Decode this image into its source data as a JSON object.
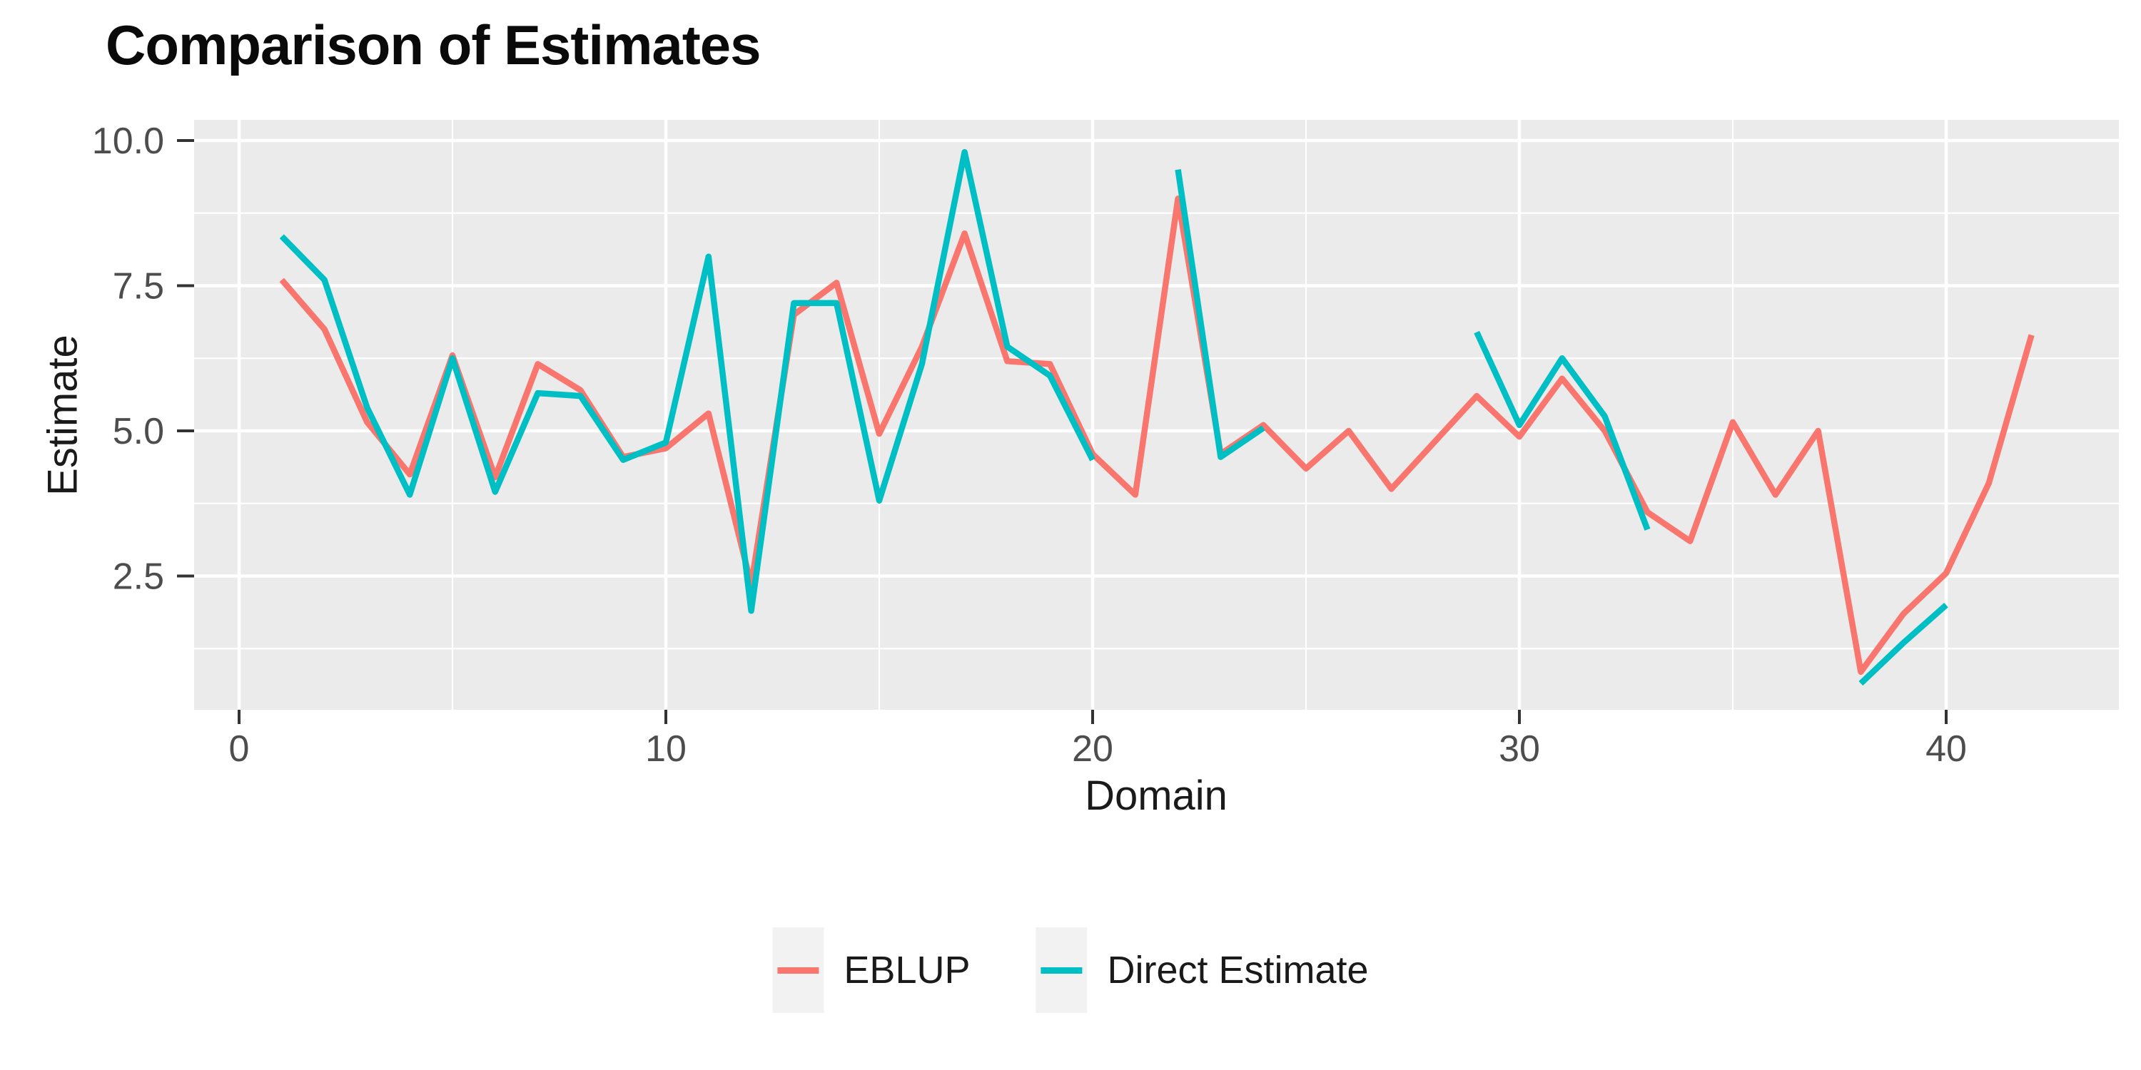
{
  "page": {
    "background": "#FFFFFF"
  },
  "chart_data": {
    "type": "line",
    "title": "Comparison of Estimates",
    "xlabel": "Domain",
    "ylabel": "Estimate",
    "grid": "on",
    "legend_position": "bottom-center",
    "panel_background": "#EBEBEB",
    "grid_color": "#FFFFFF",
    "tick_label_color": "#4D4D4D",
    "tick_mark_color": "#333333",
    "x_start": 1,
    "xlim": [
      -1.05,
      44.05
    ],
    "ylim": [
      0.2,
      10.36
    ],
    "x_ticks": [
      0,
      10,
      20,
      30,
      40
    ],
    "x_tick_labels": [
      "0",
      "10",
      "20",
      "30",
      "40"
    ],
    "x_minor_ticks": [
      5,
      15,
      25,
      35
    ],
    "y_ticks": [
      2.5,
      5.0,
      7.5,
      10.0
    ],
    "y_tick_labels": [
      "2.5",
      "5.0",
      "7.5",
      "10.0"
    ],
    "y_minor_ticks": [
      1.25,
      3.75,
      6.25,
      8.75
    ],
    "series": [
      {
        "name": "EBLUP",
        "color": "#F8766D",
        "values": [
          7.6,
          6.75,
          5.15,
          4.25,
          6.3,
          4.2,
          6.15,
          5.7,
          4.55,
          4.7,
          5.3,
          2.35,
          7.0,
          7.55,
          4.95,
          6.45,
          8.4,
          6.2,
          6.15,
          4.6,
          3.9,
          9.0,
          4.6,
          5.1,
          4.35,
          5.0,
          4.0,
          4.8,
          5.6,
          4.9,
          5.9,
          5.0,
          3.6,
          3.1,
          5.15,
          3.9,
          5.0,
          0.85,
          1.85,
          2.55,
          4.1,
          6.65
        ]
      },
      {
        "name": "Direct Estimate",
        "color": "#00BFC4",
        "values": [
          8.35,
          7.6,
          5.4,
          3.9,
          6.25,
          3.95,
          5.65,
          5.6,
          4.5,
          4.8,
          8.0,
          1.9,
          7.2,
          7.2,
          3.8,
          6.15,
          9.8,
          6.45,
          5.95,
          4.5,
          null,
          9.5,
          4.55,
          5.05,
          null,
          null,
          null,
          null,
          6.7,
          5.1,
          6.25,
          5.25,
          3.3,
          null,
          null,
          null,
          null,
          0.65,
          1.35,
          2.0,
          null,
          null
        ]
      }
    ]
  }
}
